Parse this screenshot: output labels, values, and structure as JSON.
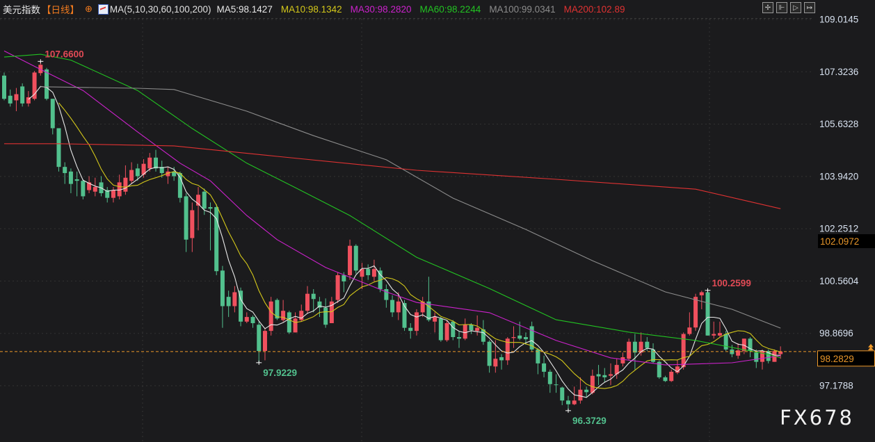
{
  "header": {
    "title": "美元指数",
    "period": "【日线】",
    "target_icon": "crosshair-target-icon",
    "ma_label": "MA(5,10,30,60,100,200)",
    "ma_values": [
      {
        "text": "MA5:98.1427",
        "color": "#e8e8e8"
      },
      {
        "text": "MA10:98.1342",
        "color": "#d4c81a"
      },
      {
        "text": "MA30:98.2820",
        "color": "#cc22cc"
      },
      {
        "text": "MA60:98.2244",
        "color": "#22c322"
      },
      {
        "text": "MA100:99.0341",
        "color": "#8c8c8c"
      },
      {
        "text": "MA200:102.89",
        "color": "#e03232"
      }
    ]
  },
  "toolbar": [
    {
      "icon": "crosshair-icon",
      "glyph": "✢"
    },
    {
      "icon": "zoom-range-icon",
      "glyph": "⊩"
    },
    {
      "icon": "play-icon",
      "glyph": "▷"
    },
    {
      "icon": "move-right-icon",
      "glyph": "↦"
    }
  ],
  "watermark": "FX678",
  "chart_data": {
    "type": "candlestick",
    "title": "美元指数",
    "colors": {
      "up": "#f0505e",
      "down": "#52c08d",
      "background": "#1b1b1d",
      "last_price": "#f09a2a"
    },
    "yticks": [
      109.0145,
      107.3236,
      105.6328,
      103.942,
      102.2512,
      100.5604,
      98.8696,
      97.1788
    ],
    "ylim": [
      96.0,
      109.4
    ],
    "grid": true,
    "last_price": "98.2829",
    "marked_price": "102.0972",
    "annotations": [
      {
        "index": 6,
        "price": 107.66,
        "text": "107.6600",
        "type": "high"
      },
      {
        "index": 42,
        "price": 97.9229,
        "text": "97.9229",
        "type": "low"
      },
      {
        "index": 93,
        "price": 96.3729,
        "text": "96.3729",
        "type": "low"
      },
      {
        "index": 116,
        "price": 100.2599,
        "text": "100.2599",
        "type": "high"
      }
    ],
    "ohlc_format": [
      "open",
      "close",
      "high",
      "low"
    ],
    "ohlc": [
      [
        107.2,
        106.45,
        107.3,
        106.4
      ],
      [
        106.55,
        106.3,
        106.75,
        106.2
      ],
      [
        106.4,
        106.6,
        106.8,
        106.05
      ],
      [
        106.85,
        106.3,
        106.95,
        106.2
      ],
      [
        106.3,
        106.5,
        106.7,
        106.2
      ],
      [
        106.45,
        107.3,
        107.35,
        106.4
      ],
      [
        107.28,
        107.55,
        107.66,
        107.2
      ],
      [
        107.4,
        106.45,
        107.45,
        106.4
      ],
      [
        106.45,
        105.5,
        106.45,
        105.3
      ],
      [
        105.5,
        104.25,
        105.5,
        104.1
      ],
      [
        104.25,
        104.05,
        104.4,
        103.7
      ],
      [
        104.1,
        103.7,
        104.2,
        103.4
      ],
      [
        103.85,
        103.8,
        104.1,
        103.3
      ],
      [
        103.8,
        103.3,
        103.85,
        103.2
      ],
      [
        103.5,
        103.75,
        103.95,
        103.4
      ],
      [
        103.45,
        103.6,
        103.9,
        103.3
      ],
      [
        103.75,
        103.4,
        103.95,
        103.3
      ],
      [
        103.5,
        103.25,
        103.6,
        103.1
      ],
      [
        103.25,
        103.5,
        103.6,
        103.1
      ],
      [
        103.3,
        103.75,
        104.0,
        103.2
      ],
      [
        103.45,
        103.9,
        104.3,
        103.35
      ],
      [
        103.8,
        104.15,
        104.4,
        103.7
      ],
      [
        104.2,
        103.95,
        104.35,
        103.8
      ],
      [
        104.0,
        104.35,
        104.5,
        103.9
      ],
      [
        104.2,
        104.55,
        104.7,
        104.1
      ],
      [
        104.55,
        104.2,
        104.8,
        104.1
      ],
      [
        104.25,
        104.05,
        104.45,
        103.9
      ],
      [
        103.95,
        104.1,
        104.25,
        103.7
      ],
      [
        104.1,
        103.95,
        104.25,
        103.8
      ],
      [
        104.05,
        103.25,
        104.1,
        103.1
      ],
      [
        103.3,
        101.9,
        103.4,
        101.5
      ],
      [
        101.95,
        102.85,
        103.1,
        101.5
      ],
      [
        103.0,
        103.35,
        103.6,
        102.2
      ],
      [
        103.45,
        102.9,
        103.55,
        102.7
      ],
      [
        102.95,
        102.9,
        103.1,
        101.55
      ],
      [
        102.95,
        100.88,
        103.05,
        100.75
      ],
      [
        100.9,
        99.75,
        101.05,
        99.05
      ],
      [
        100.05,
        99.75,
        100.25,
        99.4
      ],
      [
        99.75,
        100.2,
        100.4,
        99.55
      ],
      [
        100.25,
        99.25,
        100.35,
        99.1
      ],
      [
        99.25,
        99.4,
        99.55,
        99.2
      ],
      [
        99.4,
        99.2,
        99.45,
        99.05
      ],
      [
        99.15,
        98.3,
        99.25,
        97.9229
      ],
      [
        98.3,
        98.95,
        99.05,
        98.0
      ],
      [
        98.95,
        99.9,
        100.05,
        98.8
      ],
      [
        99.95,
        99.35,
        100.0,
        99.3
      ],
      [
        99.3,
        99.6,
        99.95,
        99.25
      ],
      [
        99.55,
        98.9,
        99.6,
        98.85
      ],
      [
        98.9,
        99.35,
        99.55,
        98.9
      ],
      [
        99.3,
        99.6,
        99.8,
        99.25
      ],
      [
        99.6,
        100.15,
        100.4,
        99.5
      ],
      [
        100.15,
        99.98,
        100.3,
        99.55
      ],
      [
        99.9,
        99.7,
        100.05,
        99.4
      ],
      [
        99.7,
        99.15,
        100.0,
        99.05
      ],
      [
        99.2,
        99.9,
        100.05,
        99.2
      ],
      [
        99.95,
        100.75,
        100.85,
        99.85
      ],
      [
        100.75,
        100.55,
        100.85,
        100.2
      ],
      [
        100.75,
        101.7,
        101.9,
        100.6
      ],
      [
        101.7,
        100.9,
        101.75,
        100.8
      ],
      [
        100.7,
        100.95,
        101.15,
        100.3
      ],
      [
        100.95,
        100.75,
        101.1,
        100.6
      ],
      [
        100.7,
        100.95,
        101.25,
        100.55
      ],
      [
        100.9,
        100.3,
        101.0,
        100.2
      ],
      [
        100.3,
        99.95,
        100.45,
        99.7
      ],
      [
        99.95,
        99.55,
        100.1,
        99.4
      ],
      [
        99.55,
        99.9,
        100.2,
        99.3
      ],
      [
        99.85,
        99.05,
        99.95,
        98.95
      ],
      [
        99.05,
        98.95,
        99.2,
        98.7
      ],
      [
        98.95,
        99.55,
        99.65,
        98.8
      ],
      [
        99.55,
        99.9,
        100.05,
        99.4
      ],
      [
        99.9,
        99.3,
        100.7,
        99.25
      ],
      [
        99.25,
        99.4,
        99.55,
        98.9
      ],
      [
        99.35,
        98.65,
        99.4,
        98.6
      ],
      [
        98.65,
        99.2,
        99.3,
        98.6
      ],
      [
        99.25,
        98.75,
        99.3,
        98.65
      ],
      [
        98.75,
        98.7,
        98.95,
        98.4
      ],
      [
        98.7,
        99.15,
        99.35,
        98.65
      ],
      [
        99.15,
        98.97,
        99.2,
        98.85
      ],
      [
        98.95,
        99.05,
        99.45,
        98.8
      ],
      [
        99.0,
        98.6,
        99.3,
        98.5
      ],
      [
        98.6,
        97.82,
        98.65,
        97.6
      ],
      [
        97.8,
        98.05,
        98.65,
        97.6
      ],
      [
        98.1,
        98.0,
        98.2,
        97.7
      ],
      [
        98.0,
        98.7,
        98.75,
        97.85
      ],
      [
        98.72,
        98.75,
        99.1,
        98.4
      ],
      [
        98.8,
        98.7,
        99.25,
        98.65
      ],
      [
        98.75,
        98.68,
        98.9,
        98.5
      ],
      [
        99.1,
        98.35,
        99.25,
        98.3
      ],
      [
        98.35,
        97.9,
        98.4,
        97.55
      ],
      [
        97.9,
        97.63,
        98.15,
        97.45
      ],
      [
        97.63,
        97.23,
        97.7,
        96.95
      ],
      [
        97.22,
        97.2,
        97.55,
        96.95
      ],
      [
        97.12,
        96.7,
        97.15,
        96.55
      ],
      [
        96.7,
        96.58,
        96.85,
        96.3729
      ],
      [
        96.58,
        96.7,
        97.15,
        96.55
      ],
      [
        96.7,
        97.05,
        97.45,
        96.6
      ],
      [
        97.05,
        96.97,
        97.15,
        96.8
      ],
      [
        96.95,
        97.5,
        97.7,
        96.9
      ],
      [
        97.55,
        97.48,
        97.85,
        97.2
      ],
      [
        97.52,
        97.45,
        97.75,
        97.3
      ],
      [
        97.5,
        97.55,
        97.9,
        97.2
      ],
      [
        97.55,
        97.85,
        98.05,
        97.4
      ],
      [
        97.9,
        98.1,
        98.25,
        97.8
      ],
      [
        98.05,
        98.6,
        98.7,
        98.0
      ],
      [
        98.6,
        98.25,
        98.85,
        97.7
      ],
      [
        98.25,
        98.6,
        98.9,
        98.15
      ],
      [
        98.6,
        98.4,
        98.75,
        98.3
      ],
      [
        98.35,
        97.95,
        98.55,
        97.9
      ],
      [
        97.95,
        97.45,
        98.0,
        97.4
      ],
      [
        97.45,
        97.33,
        97.5,
        97.3
      ],
      [
        97.33,
        97.63,
        97.7,
        97.3
      ],
      [
        97.6,
        97.8,
        98.0,
        97.55
      ],
      [
        97.78,
        98.85,
        98.9,
        97.7
      ],
      [
        98.85,
        99.06,
        99.55,
        98.8
      ],
      [
        99.06,
        100.05,
        100.15,
        98.95
      ],
      [
        100.1,
        100.2,
        100.25,
        99.65
      ],
      [
        100.2,
        98.8,
        100.2599,
        98.8
      ],
      [
        98.8,
        98.85,
        99.25,
        98.7
      ],
      [
        98.8,
        98.88,
        99.25,
        98.75
      ],
      [
        98.85,
        98.35,
        98.95,
        98.3
      ],
      [
        98.35,
        98.2,
        98.5,
        98.1
      ],
      [
        98.15,
        98.32,
        98.55,
        98.05
      ],
      [
        98.3,
        98.7,
        98.7,
        98.2
      ],
      [
        98.7,
        98.3,
        98.75,
        98.1
      ],
      [
        98.25,
        97.95,
        98.35,
        97.75
      ],
      [
        97.95,
        98.3,
        98.35,
        97.7
      ],
      [
        98.3,
        97.98,
        98.35,
        97.9
      ],
      [
        97.95,
        98.3,
        98.35,
        97.95
      ],
      [
        98.2,
        98.2829,
        98.45,
        98.05
      ]
    ],
    "moving_averages": [
      {
        "name": "MA5",
        "period": 5,
        "color": "#e8e8e8"
      },
      {
        "name": "MA10",
        "period": 10,
        "color": "#d4c81a"
      },
      {
        "name": "MA30",
        "color": "#cc22cc",
        "points": [
          [
            0,
            108.0
          ],
          [
            6,
            107.4
          ],
          [
            13,
            106.72
          ],
          [
            22,
            105.38
          ],
          [
            29,
            104.37
          ],
          [
            34,
            103.8
          ],
          [
            40,
            102.68
          ],
          [
            45,
            101.9
          ],
          [
            53,
            101.0
          ],
          [
            63,
            100.21
          ],
          [
            68,
            99.87
          ],
          [
            80,
            99.54
          ],
          [
            91,
            98.64
          ],
          [
            100,
            98.08
          ],
          [
            109,
            97.85
          ],
          [
            120,
            97.92
          ],
          [
            128,
            98.15
          ]
        ]
      },
      {
        "name": "MA60",
        "color": "#22c322",
        "points": [
          [
            0,
            107.8
          ],
          [
            6,
            107.89
          ],
          [
            11,
            107.7
          ],
          [
            22,
            106.72
          ],
          [
            31,
            105.49
          ],
          [
            40,
            104.37
          ],
          [
            48,
            103.58
          ],
          [
            57,
            102.68
          ],
          [
            68,
            101.33
          ],
          [
            80,
            100.32
          ],
          [
            91,
            99.31
          ],
          [
            103,
            98.91
          ],
          [
            114,
            98.64
          ],
          [
            126,
            98.19
          ],
          [
            128,
            98.08
          ]
        ]
      },
      {
        "name": "MA100",
        "color": "#8c8c8c",
        "points": [
          [
            6,
            106.84
          ],
          [
            22,
            106.79
          ],
          [
            28,
            106.75
          ],
          [
            40,
            106.05
          ],
          [
            51,
            105.26
          ],
          [
            63,
            104.48
          ],
          [
            74,
            103.24
          ],
          [
            86,
            102.23
          ],
          [
            97,
            101.22
          ],
          [
            109,
            100.21
          ],
          [
            120,
            99.65
          ],
          [
            128,
            99.04
          ]
        ]
      },
      {
        "name": "MA200",
        "color": "#e03232",
        "points": [
          [
            0,
            105.0
          ],
          [
            9,
            105.0
          ],
          [
            28,
            104.93
          ],
          [
            45,
            104.59
          ],
          [
            68,
            104.14
          ],
          [
            91,
            103.85
          ],
          [
            114,
            103.53
          ],
          [
            128,
            102.9
          ]
        ]
      }
    ]
  }
}
